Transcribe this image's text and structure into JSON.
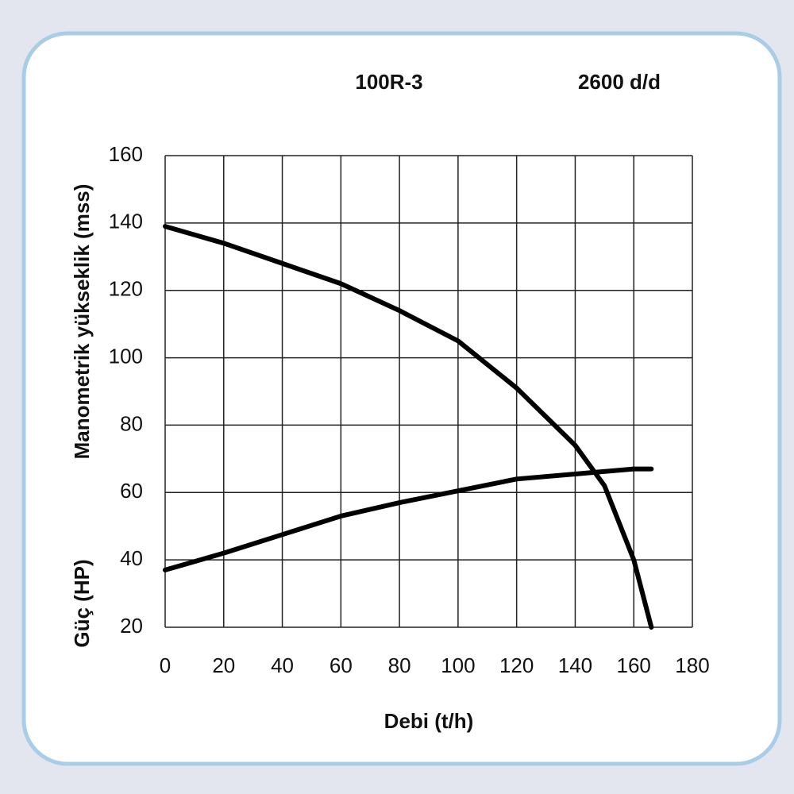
{
  "chart_data": {
    "type": "line",
    "title": "100R-3",
    "subtitle": "2600 d/d",
    "x_label": "Debi (t/h)",
    "y_label": "Manometrik yükseklik (mss)",
    "y2_label": "Güç (HP)",
    "xlim": [
      0,
      180
    ],
    "xticks": [
      0,
      20,
      40,
      60,
      80,
      100,
      120,
      140,
      160,
      180
    ],
    "ylim": [
      20,
      160
    ],
    "yticks": [
      20,
      40,
      60,
      80,
      100,
      120,
      140,
      160
    ],
    "grid": true,
    "series": [
      {
        "color": "#000000",
        "x": [
          0,
          20,
          40,
          60,
          80,
          100,
          120,
          140,
          150,
          160,
          166
        ],
        "values": [
          139,
          134,
          128,
          122,
          114,
          105,
          91,
          74,
          62,
          40,
          20
        ]
      },
      {
        "color": "#000000",
        "x": [
          0,
          20,
          40,
          60,
          80,
          100,
          120,
          140,
          160,
          166
        ],
        "values": [
          37,
          42,
          47.5,
          53,
          57,
          60.5,
          64,
          65.5,
          67,
          67
        ]
      }
    ]
  }
}
